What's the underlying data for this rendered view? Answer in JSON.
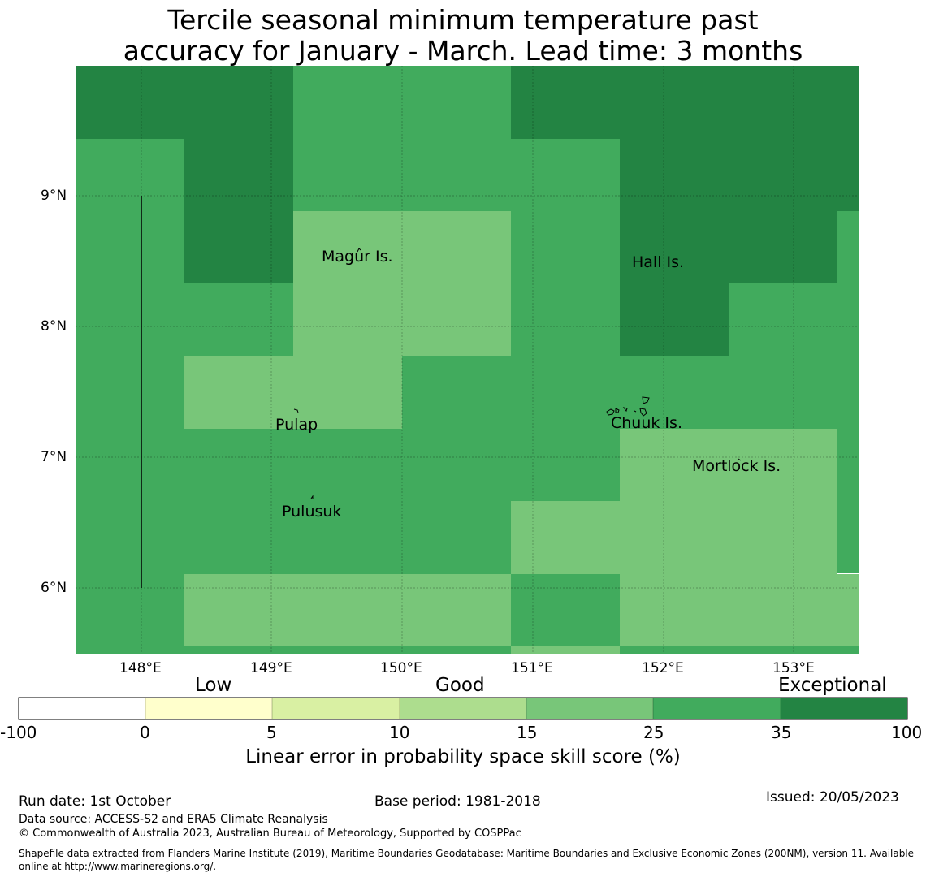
{
  "title": {
    "line1": "Tercile seasonal minimum temperature past",
    "line2": "accuracy for January - March. Lead time: 3 months"
  },
  "map": {
    "lon_ticks": [
      "148°E",
      "149°E",
      "150°E",
      "151°E",
      "152°E",
      "153°E"
    ],
    "lat_ticks": [
      "9°N",
      "8°N",
      "7°N",
      "6°N"
    ],
    "places": [
      "Magur Is.",
      "Hall Is.",
      "Pulap",
      "Chuuk Is.",
      "Mortlock Is.",
      "Pulusuk"
    ]
  },
  "legend": {
    "categories": [
      "Low",
      "Good",
      "Exceptional"
    ],
    "ticks": [
      "-100",
      "0",
      "5",
      "10",
      "15",
      "25",
      "35",
      "100"
    ],
    "colors": [
      "#ffffff",
      "#ffffcc",
      "#d9f0a3",
      "#addd8e",
      "#78c679",
      "#41ab5d",
      "#238443"
    ],
    "title": "Linear error in probability space skill score (%)"
  },
  "footer": {
    "run_date": "Run date: 1st October",
    "base_period": "Base period: 1981-2018",
    "issued": "Issued: 20/05/2023",
    "data_source": "Data source: ACCESS-S2 and ERA5 Climate Reanalysis",
    "copyright": "© Commonwealth of Australia 2023, Australian Bureau of Meteorology, Supported by COSPPac",
    "shapefile_line1": "Shapefile data extracted from Flanders Marine Institute (2019), Maritime Boundaries Geodatabase: Maritime Boundaries and Exclusive Economic Zones (200NM), version 11. Available",
    "shapefile_line2": "online at http://www.marineregions.org/."
  }
}
